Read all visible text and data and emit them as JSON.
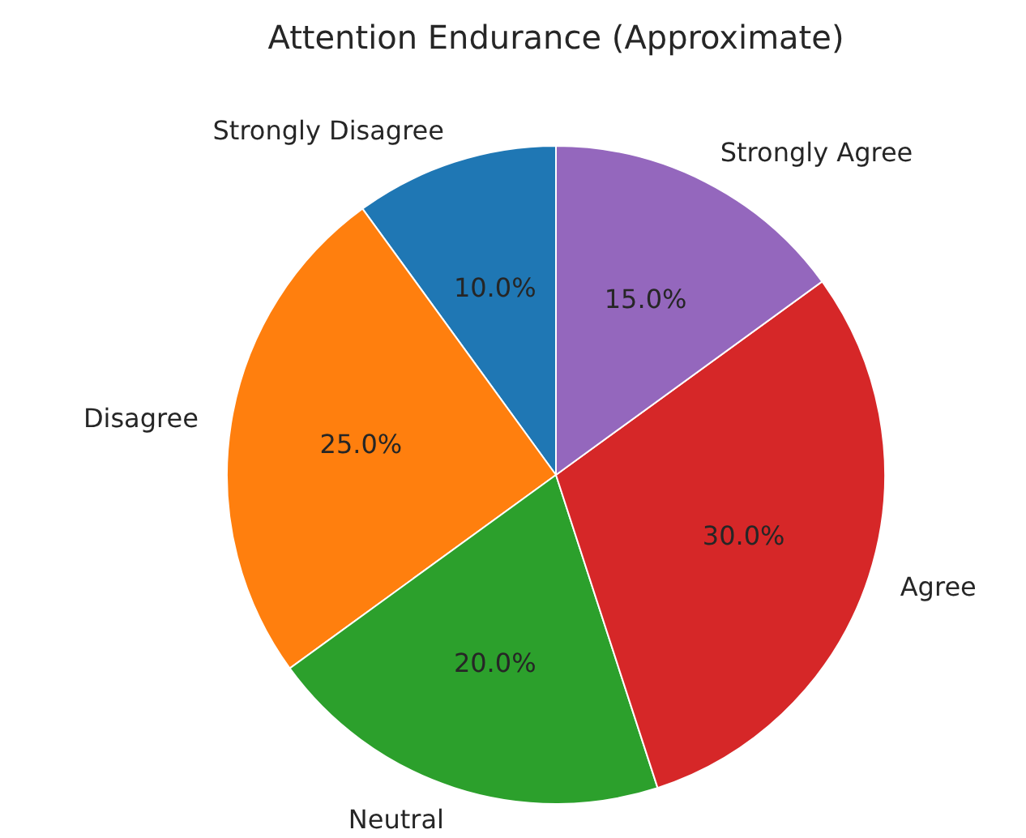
{
  "chart_data": {
    "type": "pie",
    "title": "Attention Endurance (Approximate)",
    "categories": [
      "Strongly Disagree",
      "Disagree",
      "Neutral",
      "Agree",
      "Strongly Agree"
    ],
    "values": [
      10,
      25,
      20,
      30,
      15
    ],
    "colors": [
      "#1f77b4",
      "#ff7f0e",
      "#2ca02c",
      "#d62728",
      "#9467bd"
    ],
    "value_labels": [
      "10.0%",
      "25.0%",
      "20.0%",
      "30.0%",
      "15.0%"
    ]
  }
}
